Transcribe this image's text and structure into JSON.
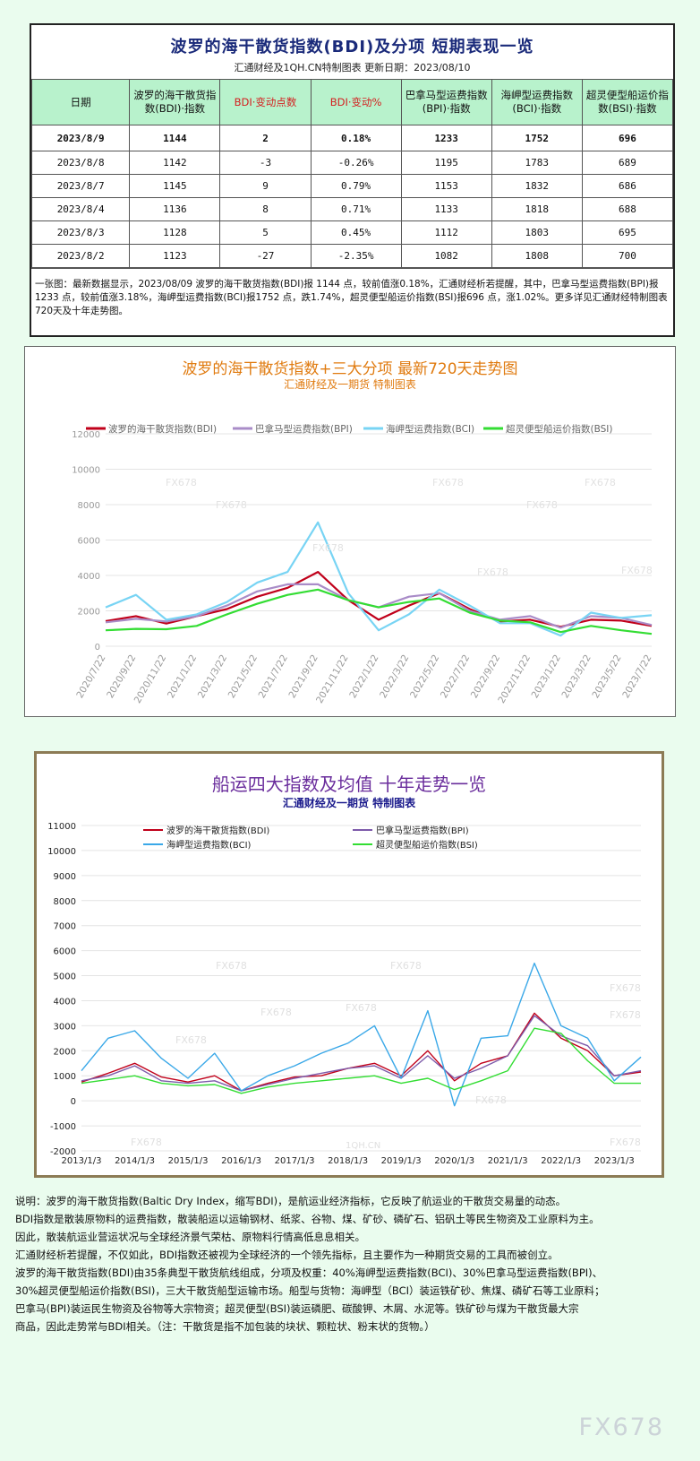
{
  "panel1": {
    "title": "波罗的海干散货指数(BDI)及分项 短期表现一览",
    "subtitle": "汇通财经及1QH.CN特制图表 更新日期：2023/08/10",
    "headers": [
      "日期",
      "波罗的海干散货指数(BDI)·指数",
      "BDI·变动点数",
      "BDI·变动%",
      "巴拿马型运费指数(BPI)·指数",
      "海岬型运费指数(BCI)·指数",
      "超灵便型船运价指数(BSI)·指数"
    ],
    "rows": [
      [
        "2023/8/9",
        "1144",
        "2",
        "0.18%",
        "1233",
        "1752",
        "696"
      ],
      [
        "2023/8/8",
        "1142",
        "-3",
        "-0.26%",
        "1195",
        "1783",
        "689"
      ],
      [
        "2023/8/7",
        "1145",
        "9",
        "0.79%",
        "1153",
        "1832",
        "686"
      ],
      [
        "2023/8/4",
        "1136",
        "8",
        "0.71%",
        "1133",
        "1818",
        "688"
      ],
      [
        "2023/8/3",
        "1128",
        "5",
        "0.45%",
        "1112",
        "1803",
        "695"
      ],
      [
        "2023/8/2",
        "1123",
        "-27",
        "-2.35%",
        "1082",
        "1808",
        "700"
      ]
    ],
    "note": "一张图：最新数据显示，2023/08/09 波罗的海干散货指数(BDI)报 1144 点，较前值涨0.18%，汇通财经析若提醒，其中，巴拿马型运费指数(BPI)报1233 点，较前值涨3.18%，海岬型运费指数(BCI)报1752 点，跌1.74%，超灵便型船运价指数(BSI)报696 点，涨1.02%。更多详见汇通财经特制图表720天及十年走势图。"
  },
  "panel2": {
    "title": "波罗的海干散货指数+三大分项 最新720天走势图",
    "subtitle": "汇通财经及一期货 特制图表"
  },
  "panel3": {
    "title": "船运四大指数及均值 十年走势一览",
    "subtitle": "汇通财经及一期货 特制图表"
  },
  "watermarks": [
    "FX678",
    "1QH.CN"
  ],
  "colors": {
    "BDI": "#c0001a",
    "BPI": "#a98cc8",
    "BCI": "#78d4f4",
    "BSI": "#33dd33",
    "BPI10": "#7d5aaa",
    "BCI10": "#3aa8e8"
  },
  "explanation": [
    "说明：波罗的海干散货指数(Baltic Dry Index，缩写BDI)，是航运业经济指标，它反映了航运业的干散货交易量的动态。",
    "BDI指数是散装原物料的运费指数，散装船运以运输钢材、纸浆、谷物、煤、矿砂、磷矿石、铝矾土等民生物资及工业原料为主。",
    "因此，散装航运业营运状况与全球经济景气荣枯、原物料行情高低息息相关。",
    "汇通财经析若提醒，不仅如此，BDI指数还被视为全球经济的一个领先指标，且主要作为一种期货交易的工具而被创立。",
    "波罗的海干散货指数(BDI)由35条典型干散货航线组成，分项及权重：40%海岬型运费指数(BCI)、30%巴拿马型运费指数(BPI)、",
    "30%超灵便型船运价指数(BSI)，三大干散货船型运输市场。船型与货物：海岬型（BCI）装运铁矿砂、焦煤、磷矿石等工业原料；",
    "巴拿马(BPI)装运民生物资及谷物等大宗物资；超灵便型(BSI)装运磷肥、碳酸钾、木屑、水泥等。铁矿砂与煤为干散货最大宗",
    "商品，因此走势常与BDI相关。（注：干散货是指不加包装的块状、颗粒状、粉末状的货物。）"
  ],
  "brand": "FX678",
  "chart_data": [
    {
      "type": "line",
      "title": "波罗的海干散货指数+三大分项 最新720天走势图",
      "ylim": [
        0,
        12000
      ],
      "yticks": [
        0,
        2000,
        4000,
        6000,
        8000,
        10000,
        12000
      ],
      "x": [
        "2020/7/22",
        "2020/9/22",
        "2020/11/22",
        "2021/1/22",
        "2021/3/22",
        "2021/5/22",
        "2021/7/22",
        "2021/9/22",
        "2021/11/22",
        "2022/1/22",
        "2022/3/22",
        "2022/5/22",
        "2022/7/22",
        "2022/9/22",
        "2022/11/22",
        "2023/1/22",
        "2023/3/22",
        "2023/5/22",
        "2023/7/22"
      ],
      "legend": "top",
      "grid": true,
      "series": [
        {
          "name": "波罗的海干散货指数(BDI)",
          "values": [
            1420,
            1700,
            1280,
            1700,
            2100,
            2800,
            3300,
            4200,
            2600,
            1500,
            2300,
            3000,
            2100,
            1400,
            1500,
            1100,
            1500,
            1450,
            1150
          ]
        },
        {
          "name": "巴拿马型运费指数(BPI)",
          "values": [
            1350,
            1550,
            1400,
            1700,
            2300,
            3100,
            3500,
            3500,
            2600,
            2200,
            2800,
            3000,
            2000,
            1500,
            1700,
            1050,
            1700,
            1600,
            1200
          ]
        },
        {
          "name": "海岬型运费指数(BCI)",
          "values": [
            2200,
            2900,
            1500,
            1800,
            2500,
            3600,
            4200,
            7000,
            3000,
            900,
            1800,
            3200,
            2300,
            1300,
            1300,
            600,
            1900,
            1600,
            1750
          ]
        },
        {
          "name": "超灵便型船运价指数(BSI)",
          "values": [
            900,
            980,
            960,
            1150,
            1800,
            2400,
            2900,
            3200,
            2600,
            2200,
            2500,
            2700,
            1900,
            1450,
            1350,
            800,
            1150,
            900,
            700
          ]
        }
      ]
    },
    {
      "type": "line",
      "title": "船运四大指数及均值 十年走势一览",
      "ylim": [
        -2000,
        11000
      ],
      "yticks": [
        -2000,
        -1000,
        0,
        1000,
        2000,
        3000,
        4000,
        5000,
        6000,
        7000,
        8000,
        9000,
        10000,
        11000
      ],
      "x": [
        "2013/1/3",
        "2013/7/3",
        "2014/1/3",
        "2014/7/3",
        "2015/1/3",
        "2015/7/3",
        "2016/1/3",
        "2016/7/3",
        "2017/1/3",
        "2017/7/3",
        "2018/1/3",
        "2018/7/3",
        "2019/1/3",
        "2019/7/3",
        "2020/1/3",
        "2020/7/3",
        "2021/1/3",
        "2021/7/3",
        "2022/1/3",
        "2022/7/3",
        "2023/1/3",
        "2023/7/3"
      ],
      "xticks": [
        "2013/1/3",
        "2014/1/3",
        "2015/1/3",
        "2016/1/3",
        "2017/1/3",
        "2018/1/3",
        "2019/1/3",
        "2020/1/3",
        "2021/1/3",
        "2022/1/3",
        "2023/1/3"
      ],
      "legend": "top",
      "grid": true,
      "series": [
        {
          "name": "波罗的海干散货指数(BDI)",
          "values": [
            750,
            1100,
            1500,
            950,
            750,
            1000,
            400,
            700,
            950,
            1000,
            1300,
            1500,
            1000,
            2000,
            800,
            1500,
            1800,
            3500,
            2500,
            2000,
            1000,
            1150
          ]
        },
        {
          "name": "巴拿马型运费指数(BPI)",
          "values": [
            800,
            1000,
            1400,
            800,
            700,
            800,
            400,
            650,
            900,
            1100,
            1300,
            1400,
            900,
            1800,
            900,
            1300,
            1800,
            3400,
            2600,
            2200,
            1000,
            1200
          ]
        },
        {
          "name": "海岬型运费指数(BCI)",
          "values": [
            1200,
            2500,
            2800,
            1700,
            900,
            1900,
            400,
            1000,
            1400,
            1900,
            2300,
            3000,
            900,
            3600,
            -200,
            2500,
            2600,
            5500,
            3000,
            2500,
            800,
            1750
          ]
        },
        {
          "name": "超灵便型船运价指数(BSI)",
          "values": [
            700,
            850,
            1000,
            700,
            600,
            650,
            300,
            550,
            700,
            800,
            900,
            1000,
            700,
            900,
            450,
            800,
            1200,
            2900,
            2700,
            1600,
            700,
            700
          ]
        }
      ]
    }
  ]
}
